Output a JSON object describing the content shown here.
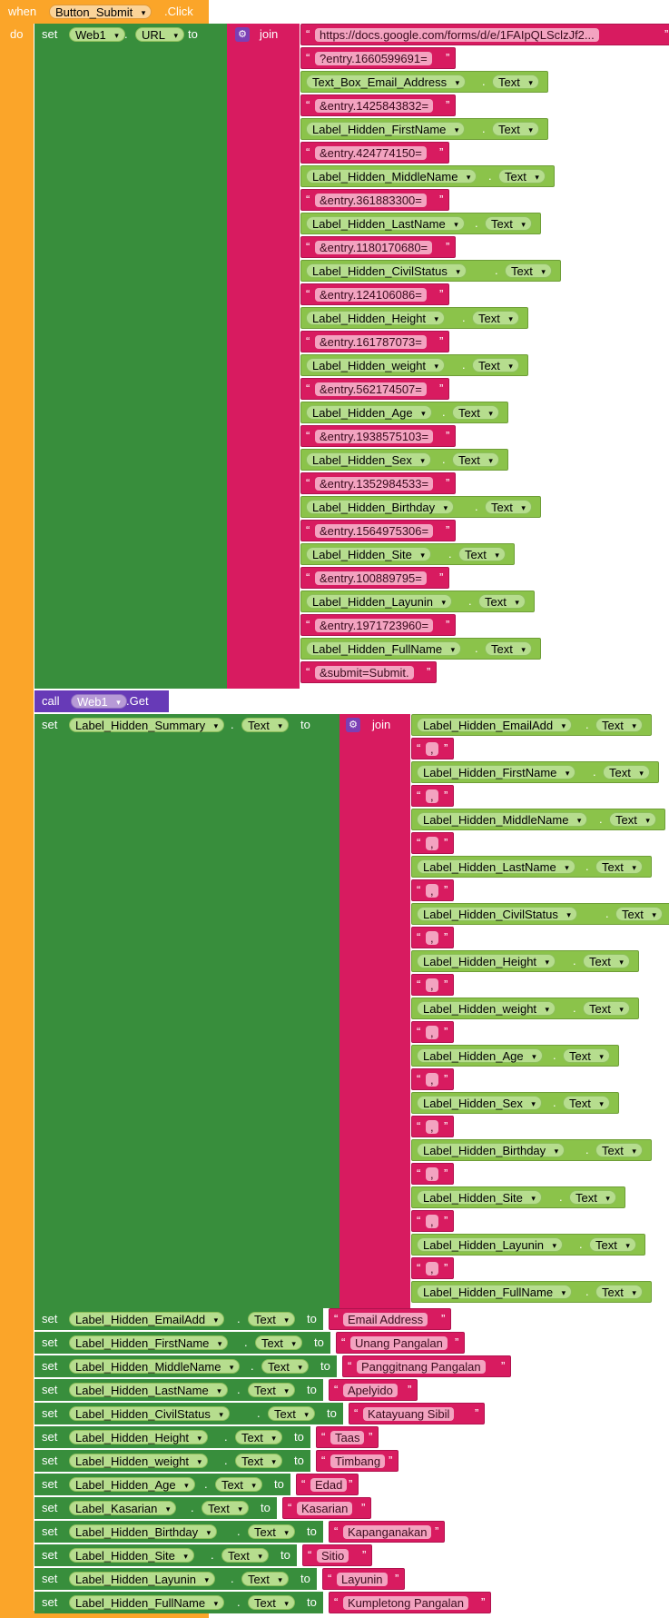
{
  "event": {
    "when": "when",
    "do": "do",
    "component": "Button_Submit",
    "event": ".Click"
  },
  "kw": {
    "set": "set",
    "to": "to",
    "join": "join",
    "call": "call",
    "dot": ".",
    "quote_open": "“",
    "quote_close": "”"
  },
  "url_set": {
    "component": "Web1",
    "property": "URL"
  },
  "url_join_items": [
    {
      "kind": "text",
      "value": "https://docs.google.com/forms/d/e/1FAIpQLSclzJf2..."
    },
    {
      "kind": "text",
      "value": "?entry.1660599691="
    },
    {
      "kind": "get",
      "component": "Text_Box_Email_Address",
      "property": "Text"
    },
    {
      "kind": "text",
      "value": "&entry.1425843832="
    },
    {
      "kind": "get",
      "component": "Label_Hidden_FirstName",
      "property": "Text"
    },
    {
      "kind": "text",
      "value": "&entry.424774150="
    },
    {
      "kind": "get",
      "component": "Label_Hidden_MiddleName",
      "property": "Text"
    },
    {
      "kind": "text",
      "value": "&entry.361883300="
    },
    {
      "kind": "get",
      "component": "Label_Hidden_LastName",
      "property": "Text"
    },
    {
      "kind": "text",
      "value": "&entry.1180170680="
    },
    {
      "kind": "get",
      "component": "Label_Hidden_CivilStatus",
      "property": "Text"
    },
    {
      "kind": "text",
      "value": "&entry.124106086="
    },
    {
      "kind": "get",
      "component": "Label_Hidden_Height",
      "property": "Text"
    },
    {
      "kind": "text",
      "value": "&entry.161787073="
    },
    {
      "kind": "get",
      "component": "Label_Hidden_weight",
      "property": "Text"
    },
    {
      "kind": "text",
      "value": "&entry.562174507="
    },
    {
      "kind": "get",
      "component": "Label_Hidden_Age",
      "property": "Text"
    },
    {
      "kind": "text",
      "value": "&entry.1938575103="
    },
    {
      "kind": "get",
      "component": "Label_Hidden_Sex",
      "property": "Text"
    },
    {
      "kind": "text",
      "value": "&entry.1352984533="
    },
    {
      "kind": "get",
      "component": "Label_Hidden_Birthday",
      "property": "Text"
    },
    {
      "kind": "text",
      "value": "&entry.1564975306="
    },
    {
      "kind": "get",
      "component": "Label_Hidden_Site",
      "property": "Text"
    },
    {
      "kind": "text",
      "value": "&entry.100889795="
    },
    {
      "kind": "get",
      "component": "Label_Hidden_Layunin",
      "property": "Text"
    },
    {
      "kind": "text",
      "value": "&entry.1971723960="
    },
    {
      "kind": "get",
      "component": "Label_Hidden_FullName",
      "property": "Text"
    },
    {
      "kind": "text",
      "value": "&submit=Submit."
    }
  ],
  "call": {
    "component": "Web1",
    "method": ".Get"
  },
  "summary_set": {
    "component": "Label_Hidden_Summary",
    "property": "Text"
  },
  "summary_join_items": [
    {
      "kind": "get",
      "component": "Label_Hidden_EmailAdd",
      "property": "Text"
    },
    {
      "kind": "text",
      "value": ","
    },
    {
      "kind": "get",
      "component": "Label_Hidden_FirstName",
      "property": "Text"
    },
    {
      "kind": "text",
      "value": ","
    },
    {
      "kind": "get",
      "component": "Label_Hidden_MiddleName",
      "property": "Text"
    },
    {
      "kind": "text",
      "value": ","
    },
    {
      "kind": "get",
      "component": "Label_Hidden_LastName",
      "property": "Text"
    },
    {
      "kind": "text",
      "value": ","
    },
    {
      "kind": "get",
      "component": "Label_Hidden_CivilStatus",
      "property": "Text"
    },
    {
      "kind": "text",
      "value": ","
    },
    {
      "kind": "get",
      "component": "Label_Hidden_Height",
      "property": "Text"
    },
    {
      "kind": "text",
      "value": ","
    },
    {
      "kind": "get",
      "component": "Label_Hidden_weight",
      "property": "Text"
    },
    {
      "kind": "text",
      "value": ","
    },
    {
      "kind": "get",
      "component": "Label_Hidden_Age",
      "property": "Text"
    },
    {
      "kind": "text",
      "value": ","
    },
    {
      "kind": "get",
      "component": "Label_Hidden_Sex",
      "property": "Text"
    },
    {
      "kind": "text",
      "value": ","
    },
    {
      "kind": "get",
      "component": "Label_Hidden_Birthday",
      "property": "Text"
    },
    {
      "kind": "text",
      "value": ","
    },
    {
      "kind": "get",
      "component": "Label_Hidden_Site",
      "property": "Text"
    },
    {
      "kind": "text",
      "value": ","
    },
    {
      "kind": "get",
      "component": "Label_Hidden_Layunin",
      "property": "Text"
    },
    {
      "kind": "text",
      "value": ","
    },
    {
      "kind": "get",
      "component": "Label_Hidden_FullName",
      "property": "Text"
    }
  ],
  "final_sets": [
    {
      "component": "Label_Hidden_EmailAdd",
      "property": "Text",
      "value": "Email Address"
    },
    {
      "component": "Label_Hidden_FirstName",
      "property": "Text",
      "value": "Unang Pangalan"
    },
    {
      "component": "Label_Hidden_MiddleName",
      "property": "Text",
      "value": "Panggitnang Pangalan"
    },
    {
      "component": "Label_Hidden_LastName",
      "property": "Text",
      "value": "Apelyido"
    },
    {
      "component": "Label_Hidden_CivilStatus",
      "property": "Text",
      "value": "Katayuang Sibil"
    },
    {
      "component": "Label_Hidden_Height",
      "property": "Text",
      "value": "Taas"
    },
    {
      "component": "Label_Hidden_weight",
      "property": "Text",
      "value": "Timbang"
    },
    {
      "component": "Label_Hidden_Age",
      "property": "Text",
      "value": "Edad"
    },
    {
      "component": "Label_Kasarian",
      "property": "Text",
      "value": "Kasarian"
    },
    {
      "component": "Label_Hidden_Birthday",
      "property": "Text",
      "value": "Kapanganakan"
    },
    {
      "component": "Label_Hidden_Site",
      "property": "Text",
      "value": "Sitio"
    },
    {
      "component": "Label_Hidden_Layunin",
      "property": "Text",
      "value": "Layunin"
    },
    {
      "component": "Label_Hidden_FullName",
      "property": "Text",
      "value": "Kumpletong Pangalan"
    }
  ],
  "colors": {
    "event_block": "#fba529",
    "setter_block": "#388e3c",
    "join_block": "#d81b60",
    "getter_block": "#8bc34a",
    "call_block": "#673ab7"
  }
}
